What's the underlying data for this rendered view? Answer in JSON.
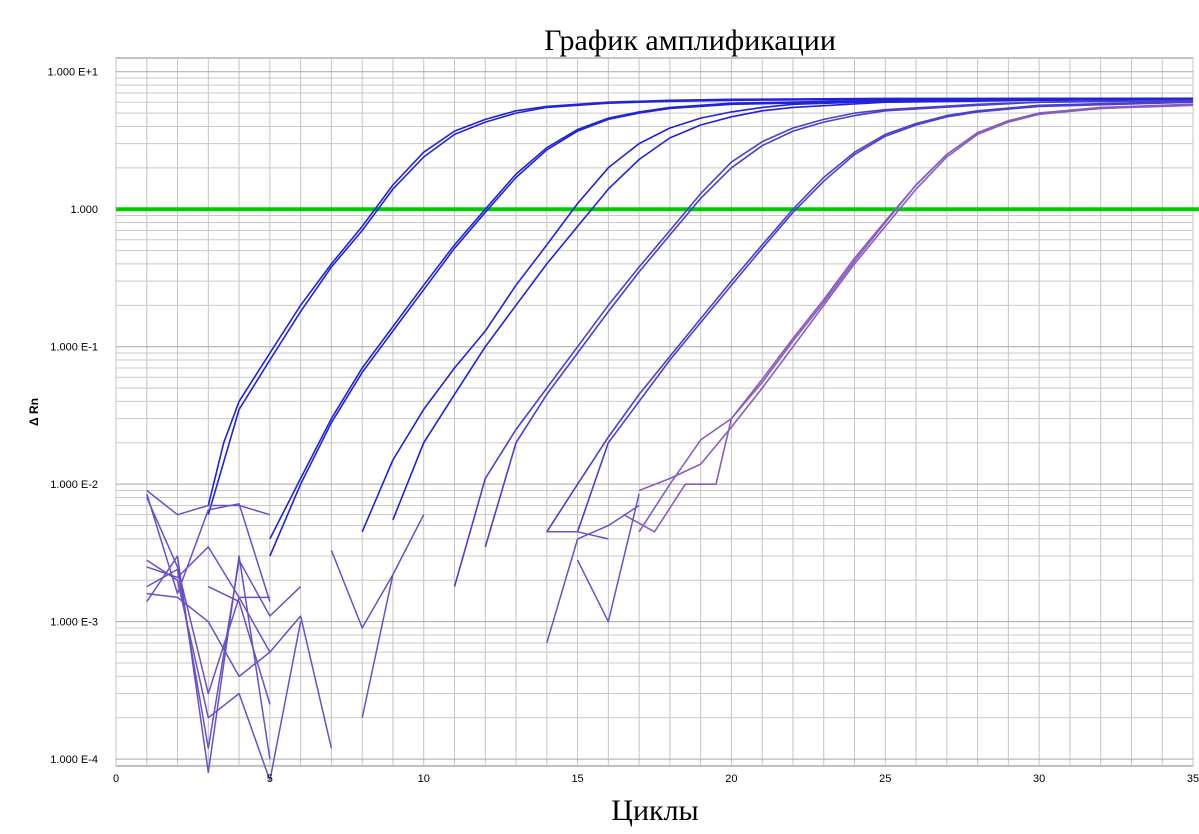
{
  "chart_data": {
    "type": "line",
    "title": "График амплификации",
    "xlabel": "Циклы",
    "ylabel": "Δ Rn",
    "yscale": "log",
    "xlim": [
      0,
      35
    ],
    "ylim": [
      0.0001,
      10
    ],
    "x_ticks": [
      0,
      5,
      10,
      15,
      20,
      25,
      30,
      35
    ],
    "y_ticks": [
      {
        "value": 10,
        "label": "1.000 E+1"
      },
      {
        "value": 1,
        "label": "1.000"
      },
      {
        "value": 0.1,
        "label": "1.000 E-1"
      },
      {
        "value": 0.01,
        "label": "1.000 E-2"
      },
      {
        "value": 0.001,
        "label": "1.000 E-3"
      },
      {
        "value": 0.0001,
        "label": "1.000 E-4"
      }
    ],
    "grid": true,
    "threshold": {
      "value": 1,
      "color": "#00cc00"
    },
    "colors": {
      "curve_dark": "#2222d8",
      "curve_mid": "#4a3fcf",
      "curve_light": "#8a5cc0",
      "noise": "#6a4fc8"
    },
    "series": [
      {
        "x": [
          3,
          3.5,
          4,
          5,
          6,
          7,
          8,
          9,
          10,
          11,
          12,
          13,
          14,
          16,
          18,
          20,
          25,
          30,
          35
        ],
        "y": [
          0.007,
          0.02,
          0.04,
          0.09,
          0.2,
          0.4,
          0.75,
          1.5,
          2.6,
          3.7,
          4.5,
          5.2,
          5.6,
          6.0,
          6.2,
          6.3,
          6.4,
          6.4,
          6.4
        ]
      },
      {
        "x": [
          3,
          4,
          5,
          6,
          7,
          8,
          9,
          10,
          11,
          12,
          13,
          14,
          16,
          18,
          20,
          25,
          30,
          35
        ],
        "y": [
          0.006,
          0.035,
          0.08,
          0.18,
          0.38,
          0.7,
          1.4,
          2.4,
          3.5,
          4.3,
          5.0,
          5.5,
          5.9,
          6.1,
          6.2,
          6.3,
          6.4,
          6.4
        ]
      },
      {
        "x": [
          5,
          6,
          7,
          8,
          9,
          10,
          11,
          12,
          13,
          14,
          15,
          16,
          17,
          18,
          20,
          25,
          30,
          35
        ],
        "y": [
          0.004,
          0.011,
          0.03,
          0.07,
          0.14,
          0.28,
          0.55,
          1.0,
          1.8,
          2.8,
          3.8,
          4.6,
          5.1,
          5.5,
          5.9,
          6.2,
          6.3,
          6.4
        ]
      },
      {
        "x": [
          5,
          6,
          7,
          8,
          9,
          10,
          11,
          12,
          13,
          14,
          15,
          16,
          17,
          18,
          20,
          25,
          30,
          35
        ],
        "y": [
          0.003,
          0.01,
          0.028,
          0.065,
          0.13,
          0.26,
          0.52,
          0.95,
          1.7,
          2.7,
          3.7,
          4.5,
          5.0,
          5.4,
          5.8,
          6.1,
          6.3,
          6.4
        ]
      },
      {
        "x": [
          8,
          9,
          10,
          11,
          12,
          13,
          14,
          15,
          16,
          17,
          18,
          19,
          20,
          21,
          22,
          25,
          30,
          35
        ],
        "y": [
          0.0045,
          0.015,
          0.035,
          0.07,
          0.13,
          0.28,
          0.55,
          1.1,
          2.0,
          3.0,
          3.9,
          4.6,
          5.1,
          5.5,
          5.8,
          6.1,
          6.3,
          6.3
        ]
      },
      {
        "x": [
          9,
          10,
          11,
          12,
          13,
          14,
          15,
          16,
          17,
          18,
          19,
          20,
          21,
          22,
          25,
          30,
          35
        ],
        "y": [
          0.0055,
          0.02,
          0.045,
          0.1,
          0.2,
          0.4,
          0.75,
          1.4,
          2.3,
          3.3,
          4.1,
          4.7,
          5.2,
          5.5,
          6.0,
          6.2,
          6.3
        ]
      },
      {
        "x": [
          11,
          12,
          13,
          14,
          15,
          16,
          17,
          18,
          19,
          20,
          21,
          22,
          23,
          24,
          25,
          28,
          30,
          35
        ],
        "y": [
          0.0018,
          0.011,
          0.025,
          0.05,
          0.1,
          0.2,
          0.38,
          0.7,
          1.3,
          2.2,
          3.1,
          3.9,
          4.5,
          5.0,
          5.3,
          5.8,
          6.0,
          6.2
        ]
      },
      {
        "x": [
          12,
          13,
          14,
          15,
          16,
          17,
          18,
          19,
          20,
          21,
          22,
          23,
          24,
          25,
          28,
          30,
          35
        ],
        "y": [
          0.0035,
          0.02,
          0.045,
          0.09,
          0.18,
          0.35,
          0.65,
          1.2,
          2.0,
          2.9,
          3.7,
          4.3,
          4.8,
          5.2,
          5.7,
          6.0,
          6.2
        ]
      },
      {
        "x": [
          14,
          15,
          16,
          17,
          18,
          19,
          20,
          21,
          22,
          23,
          24,
          25,
          26,
          27,
          28,
          30,
          35
        ],
        "y": [
          0.0045,
          0.01,
          0.022,
          0.045,
          0.085,
          0.16,
          0.3,
          0.55,
          1.0,
          1.7,
          2.6,
          3.5,
          4.2,
          4.8,
          5.2,
          5.7,
          6.1
        ]
      },
      {
        "x": [
          15,
          16,
          17,
          18,
          19,
          20,
          21,
          22,
          23,
          24,
          25,
          26,
          27,
          28,
          30,
          35
        ],
        "y": [
          0.0045,
          0.02,
          0.04,
          0.08,
          0.15,
          0.28,
          0.52,
          0.95,
          1.6,
          2.5,
          3.4,
          4.1,
          4.7,
          5.1,
          5.6,
          6.0
        ]
      },
      {
        "x": [
          17,
          18,
          19,
          20,
          21,
          22,
          23,
          24,
          25,
          26,
          27,
          28,
          29,
          30,
          32,
          35
        ],
        "y": [
          0.009,
          0.011,
          0.014,
          0.026,
          0.05,
          0.1,
          0.2,
          0.4,
          0.75,
          1.4,
          2.4,
          3.5,
          4.3,
          4.9,
          5.4,
          5.8
        ]
      },
      {
        "x": [
          17,
          18,
          19,
          20,
          21,
          22,
          23,
          24,
          25,
          26,
          27,
          28,
          29,
          30,
          32,
          35
        ],
        "y": [
          0.0045,
          0.01,
          0.021,
          0.03,
          0.055,
          0.11,
          0.21,
          0.42,
          0.8,
          1.5,
          2.5,
          3.6,
          4.4,
          5.0,
          5.5,
          5.8
        ]
      },
      {
        "x": [
          16.5,
          17.5,
          18.5,
          19.5,
          20,
          21,
          22,
          23,
          24,
          25,
          26,
          27,
          28,
          29,
          30,
          32,
          35
        ],
        "y": [
          0.006,
          0.0045,
          0.01,
          0.01,
          0.03,
          0.058,
          0.115,
          0.22,
          0.44,
          0.82,
          1.5,
          2.5,
          3.6,
          4.4,
          5.0,
          5.4,
          5.7
        ]
      },
      {
        "x": [
          1,
          2,
          3,
          4,
          5
        ],
        "y": [
          0.009,
          0.006,
          0.007,
          0.007,
          0.006
        ]
      },
      {
        "x": [
          1,
          2,
          3,
          4,
          5
        ],
        "y": [
          0.0085,
          0.0016,
          0.0065,
          0.0072,
          0.0014
        ]
      },
      {
        "x": [
          1,
          2,
          3,
          4,
          5
        ],
        "y": [
          0.008,
          0.0025,
          0.0003,
          0.0015,
          0.0006
        ]
      },
      {
        "x": [
          1,
          2,
          3,
          4,
          5
        ],
        "y": [
          0.0014,
          0.003,
          8e-05,
          0.003,
          0.0001
        ]
      },
      {
        "x": [
          1,
          2,
          3,
          4,
          5,
          6
        ],
        "y": [
          0.0028,
          0.002,
          0.0002,
          0.0003,
          7e-05,
          0.001
        ]
      },
      {
        "x": [
          1,
          2,
          3,
          4,
          5,
          6
        ],
        "y": [
          0.0018,
          0.0024,
          0.00012,
          0.0028,
          0.0011,
          0.0018
        ]
      },
      {
        "x": [
          1,
          2,
          3,
          4,
          5,
          6,
          7
        ],
        "y": [
          0.0016,
          0.0015,
          0.001,
          0.0004,
          0.0006,
          0.0011,
          0.00012
        ]
      },
      {
        "x": [
          1,
          2,
          3,
          4,
          5
        ],
        "y": [
          0.0025,
          0.0021,
          0.0035,
          0.0015,
          0.0015
        ]
      },
      {
        "x": [
          3,
          4,
          5
        ],
        "y": [
          0.0018,
          0.0014,
          0.00025
        ]
      },
      {
        "x": [
          7,
          8,
          9
        ],
        "y": [
          0.0033,
          0.0009,
          0.0022
        ]
      },
      {
        "x": [
          8,
          9,
          10
        ],
        "y": [
          0.0002,
          0.0022,
          0.006
        ]
      },
      {
        "x": [
          14,
          15,
          16
        ],
        "y": [
          0.0045,
          0.0045,
          0.004
        ]
      },
      {
        "x": [
          14,
          15,
          16,
          17
        ],
        "y": [
          0.0007,
          0.004,
          0.005,
          0.007
        ]
      },
      {
        "x": [
          15,
          16,
          17
        ],
        "y": [
          0.0028,
          0.001,
          0.0085
        ]
      }
    ]
  }
}
